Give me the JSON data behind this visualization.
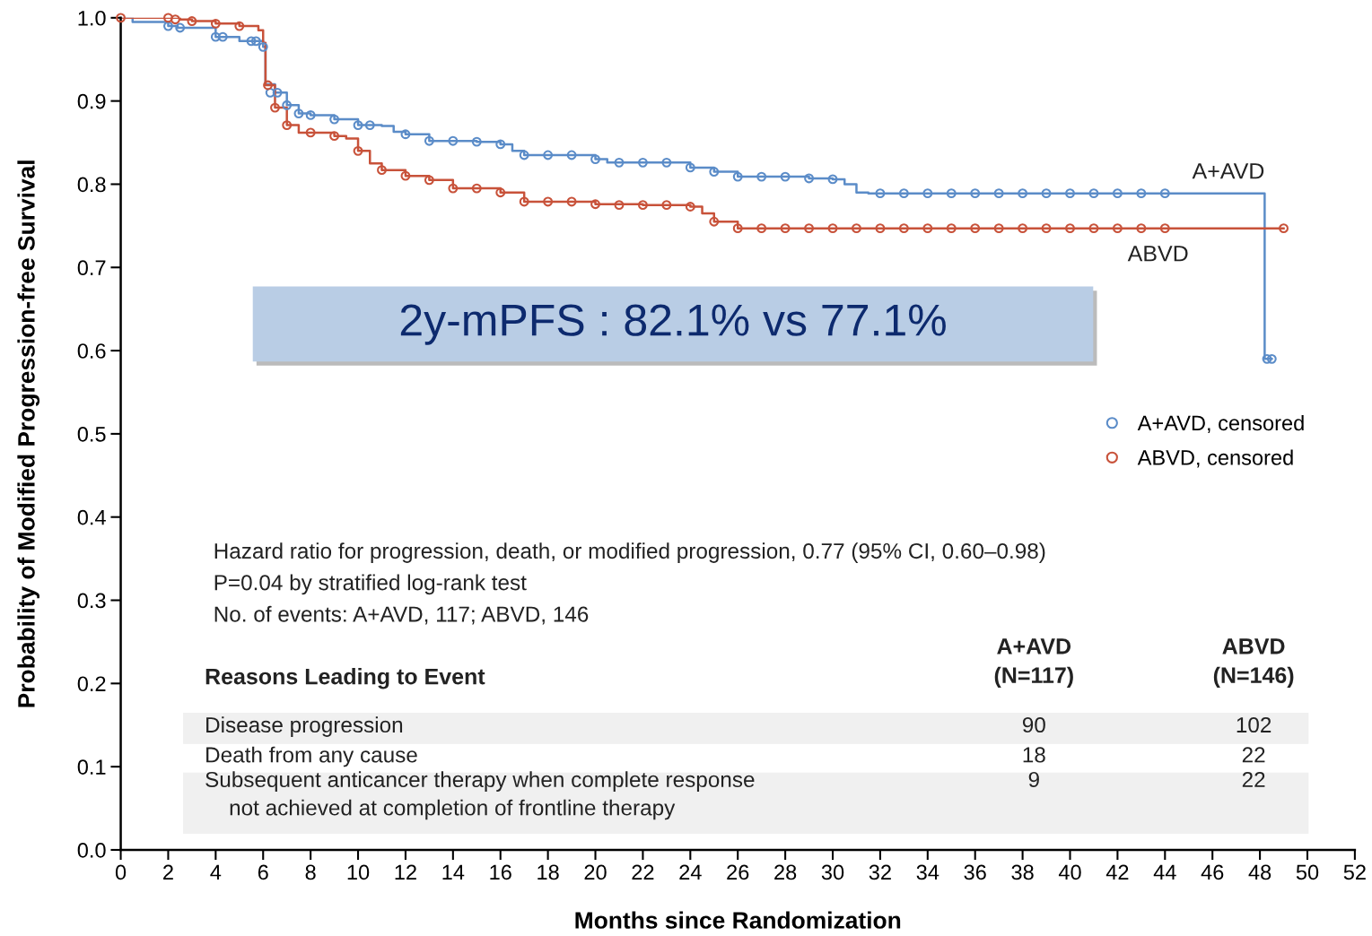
{
  "chart_data": {
    "type": "step",
    "xlabel": "Months since Randomization",
    "ylabel": "Probability of Modified Progression-free Survival",
    "xlim": [
      0,
      52
    ],
    "xticks": [
      0,
      2,
      4,
      6,
      8,
      10,
      12,
      14,
      16,
      18,
      20,
      22,
      24,
      26,
      28,
      30,
      32,
      34,
      36,
      38,
      40,
      42,
      44,
      46,
      48,
      50,
      52
    ],
    "ylim": [
      0,
      1
    ],
    "yticks": [
      {
        "value": 0,
        "label": "0.0"
      },
      0.1,
      0.2,
      0.3,
      0.4,
      0.5,
      0.6,
      0.7,
      0.8,
      0.9,
      {
        "value": 1,
        "label": "1.0"
      }
    ],
    "grid": false,
    "legend": "right",
    "series": [
      {
        "name": "A+AVD",
        "color": "#5b8cc8",
        "marker": "none",
        "x": [
          0,
          0.5,
          2,
          2.4,
          4,
          5,
          6,
          6.1,
          6.5,
          7,
          7.5,
          8,
          9,
          10,
          11,
          11.5,
          12,
          13,
          15,
          16,
          16.5,
          17,
          19,
          20,
          20.5,
          23,
          24,
          25,
          26,
          28,
          29,
          30,
          30.5,
          31,
          31.5,
          48.2,
          48.5
        ],
        "values": [
          1.0,
          0.995,
          0.99,
          0.988,
          0.977,
          0.972,
          0.965,
          0.92,
          0.91,
          0.895,
          0.885,
          0.883,
          0.878,
          0.871,
          0.87,
          0.863,
          0.86,
          0.852,
          0.851,
          0.848,
          0.84,
          0.835,
          0.835,
          0.83,
          0.826,
          0.826,
          0.82,
          0.815,
          0.809,
          0.809,
          0.807,
          0.806,
          0.8,
          0.79,
          0.789,
          0.59,
          0.59
        ]
      },
      {
        "name": "ABVD",
        "color": "#c8523a",
        "marker": "none",
        "x": [
          0,
          2,
          2.5,
          3,
          4,
          5,
          5.8,
          6,
          6.1,
          6.5,
          7,
          7.5,
          8,
          9,
          9.5,
          10,
          10.5,
          11,
          12,
          13,
          14,
          15,
          16,
          17,
          18,
          20,
          22,
          24,
          24.5,
          25,
          26,
          49
        ],
        "values": [
          1.0,
          1.0,
          0.998,
          0.996,
          0.993,
          0.99,
          0.985,
          0.97,
          0.919,
          0.892,
          0.871,
          0.862,
          0.862,
          0.858,
          0.855,
          0.84,
          0.825,
          0.817,
          0.81,
          0.805,
          0.795,
          0.795,
          0.79,
          0.779,
          0.779,
          0.776,
          0.775,
          0.773,
          0.765,
          0.755,
          0.747,
          0.747
        ]
      },
      {
        "name": "A+AVD, censored",
        "type": "scatter",
        "color": "#5b8cc8",
        "marker": "circle",
        "x": [
          2,
          2.5,
          4,
          4.3,
          5.5,
          5.7,
          6,
          6.3,
          6.6,
          7,
          7.5,
          8,
          9,
          10,
          10.5,
          12,
          13,
          14,
          15,
          16,
          17,
          18,
          19,
          20,
          21,
          22,
          23,
          24,
          25,
          26,
          27,
          28,
          29,
          30,
          32,
          33,
          34,
          35,
          36,
          37,
          38,
          39,
          40,
          41,
          42,
          43,
          44,
          48.3,
          48.5
        ],
        "values": [
          0.99,
          0.988,
          0.977,
          0.977,
          0.972,
          0.972,
          0.965,
          0.91,
          0.91,
          0.895,
          0.885,
          0.883,
          0.878,
          0.871,
          0.871,
          0.86,
          0.852,
          0.852,
          0.851,
          0.848,
          0.835,
          0.835,
          0.835,
          0.83,
          0.826,
          0.826,
          0.826,
          0.82,
          0.815,
          0.809,
          0.809,
          0.809,
          0.807,
          0.806,
          0.789,
          0.789,
          0.789,
          0.789,
          0.789,
          0.789,
          0.789,
          0.789,
          0.789,
          0.789,
          0.789,
          0.789,
          0.789,
          0.59,
          0.59
        ]
      },
      {
        "name": "ABVD, censored",
        "type": "scatter",
        "color": "#c8523a",
        "marker": "circle",
        "x": [
          0,
          2,
          2.3,
          3,
          4,
          5,
          6.2,
          6.5,
          7,
          8,
          9,
          10,
          11,
          12,
          13,
          14,
          15,
          16,
          17,
          18,
          19,
          20,
          21,
          22,
          23,
          24,
          25,
          26,
          27,
          28,
          29,
          30,
          31,
          32,
          33,
          34,
          35,
          36,
          37,
          38,
          39,
          40,
          41,
          42,
          43,
          44,
          49
        ],
        "values": [
          1.0,
          1.0,
          0.998,
          0.996,
          0.993,
          0.99,
          0.919,
          0.892,
          0.871,
          0.862,
          0.858,
          0.84,
          0.817,
          0.81,
          0.805,
          0.795,
          0.795,
          0.79,
          0.779,
          0.779,
          0.779,
          0.776,
          0.775,
          0.775,
          0.775,
          0.773,
          0.755,
          0.747,
          0.747,
          0.747,
          0.747,
          0.747,
          0.747,
          0.747,
          0.747,
          0.747,
          0.747,
          0.747,
          0.747,
          0.747,
          0.747,
          0.747,
          0.747,
          0.747,
          0.747,
          0.747,
          0.747
        ]
      }
    ],
    "annotations": [
      "2y-mPFS : 82.1% vs 77.1%",
      "Hazard ratio for progression, death, or modified progression, 0.77 (95% CI, 0.60–0.98)",
      "P=0.04 by stratified log-rank test",
      "No. of events: A+AVD, 117; ABVD, 146",
      "Reasons Leading to Event",
      "A+AVD\n(N=117)",
      "ABVD\n(N=146)",
      "Disease progression",
      "90",
      "102",
      "Death from any cause",
      "18",
      "22",
      "Subsequent anticancer therapy when complete response\n    not achieved at completion of frontline therapy",
      "9",
      "22"
    ]
  }
}
